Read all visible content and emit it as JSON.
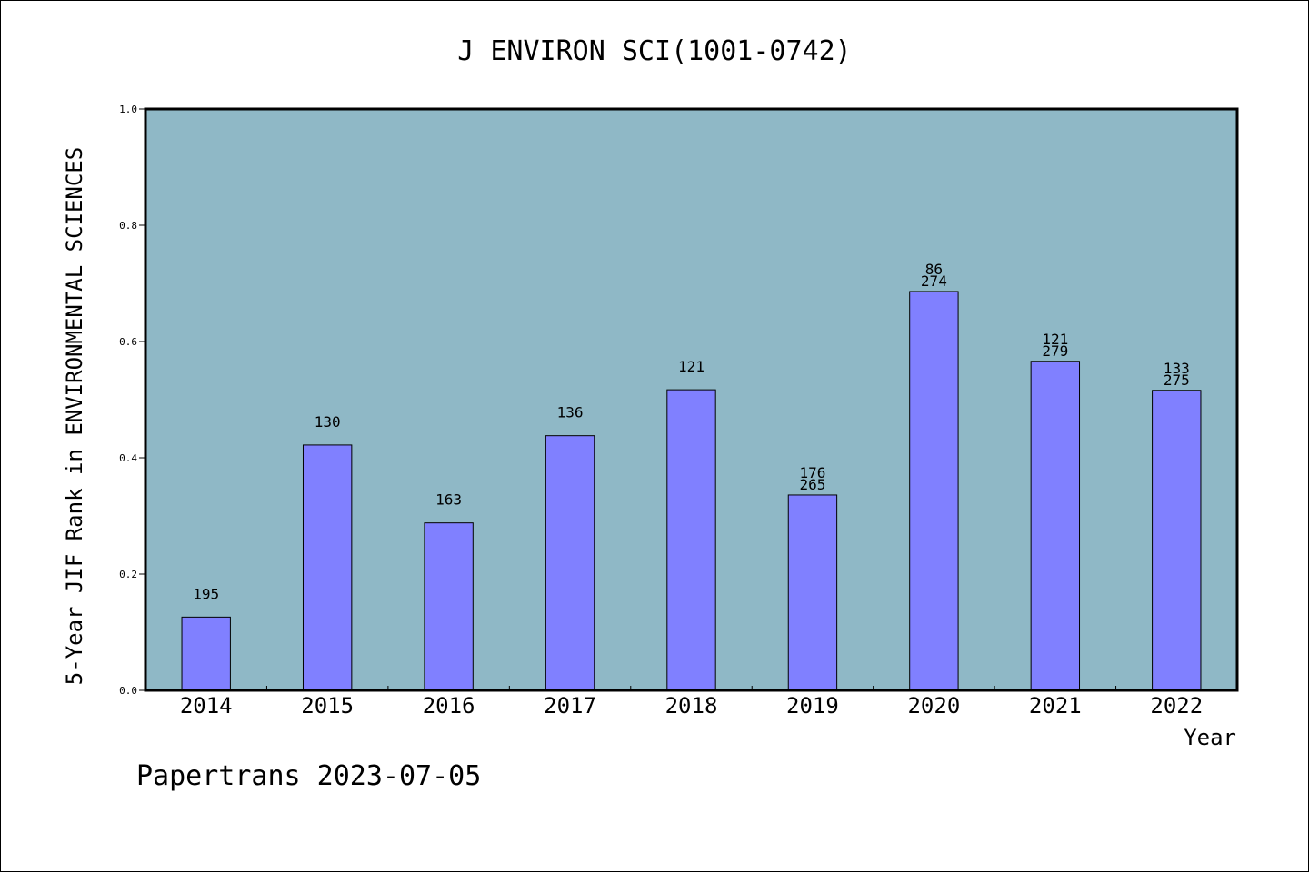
{
  "chart_data": {
    "type": "bar",
    "title": "J ENVIRON SCI(1001-0742)",
    "ylabel": "5-Year JIF Rank in ENVIRONMENTAL SCIENCES",
    "xlabel": "Year",
    "footer": "Papertrans 2023-07-05",
    "ylim": [
      0.0,
      1.0
    ],
    "yticks": [
      "0.0",
      "0.2",
      "0.4",
      "0.6",
      "0.8",
      "1.0"
    ],
    "grid": false,
    "categories": [
      "2014",
      "2015",
      "2016",
      "2017",
      "2018",
      "2019",
      "2020",
      "2021",
      "2022"
    ],
    "values": [
      0.126,
      0.422,
      0.288,
      0.438,
      0.517,
      0.336,
      0.686,
      0.566,
      0.516
    ],
    "bar_labels": [
      [
        "195"
      ],
      [
        "130"
      ],
      [
        "163"
      ],
      [
        "136"
      ],
      [
        "121"
      ],
      [
        "176",
        "265"
      ],
      [
        "86",
        "274"
      ],
      [
        "121",
        "279"
      ],
      [
        "133",
        "275"
      ]
    ],
    "colors": {
      "plot_background": "#8fb8c6",
      "bar_fill": "#8080ff",
      "bar_stroke": "#000000"
    }
  }
}
